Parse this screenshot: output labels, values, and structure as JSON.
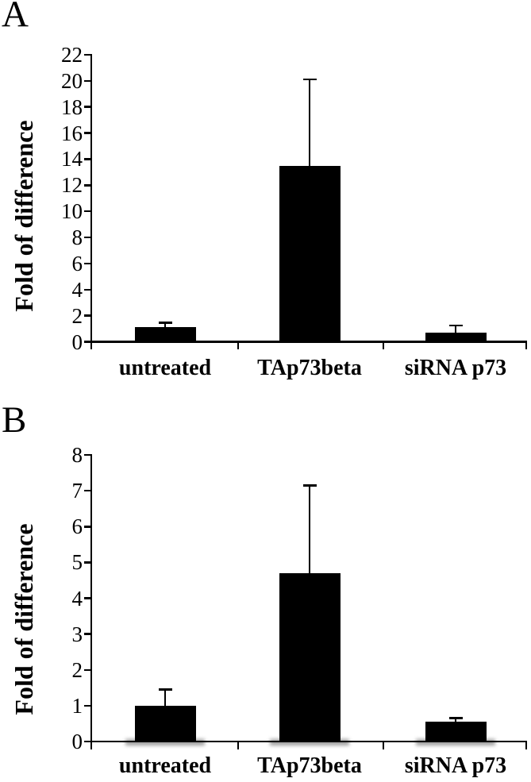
{
  "figure": {
    "background_color": "#ffffff",
    "axis_color": "#000000"
  },
  "chart_data": [
    {
      "type": "bar",
      "panel_label": "A",
      "title": "",
      "xlabel": "",
      "ylabel": "Fold of difference",
      "categories": [
        "untreated",
        "TAp73beta",
        "siRNA p73"
      ],
      "values": [
        1.1,
        13.5,
        0.7
      ],
      "error_bar_tops": [
        1.45,
        20.1,
        1.25
      ],
      "ylim": [
        0,
        22
      ],
      "ytick_step": 2,
      "yticks": [
        0,
        2,
        4,
        6,
        8,
        10,
        12,
        14,
        16,
        18,
        20,
        22
      ],
      "bar_color": "#000000",
      "grid": false,
      "legend": false,
      "bar_shadow": false,
      "shadow_color": "#909090"
    },
    {
      "type": "bar",
      "panel_label": "B",
      "title": "",
      "xlabel": "",
      "ylabel": "Fold of difference",
      "categories": [
        "untreated",
        "TAp73beta",
        "siRNA p73"
      ],
      "values": [
        1.0,
        4.7,
        0.55
      ],
      "error_bar_tops": [
        1.45,
        7.15,
        0.65
      ],
      "ylim": [
        0,
        8
      ],
      "ytick_step": 1,
      "yticks": [
        0,
        1,
        2,
        3,
        4,
        5,
        6,
        7,
        8
      ],
      "bar_color": "#000000",
      "grid": false,
      "legend": false,
      "bar_shadow": true,
      "shadow_color": "#909090"
    }
  ]
}
